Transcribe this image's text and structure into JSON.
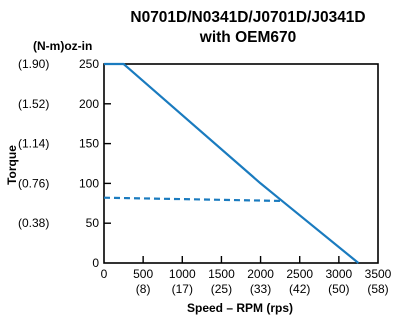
{
  "chart_data": {
    "type": "line",
    "title": "N0701D/N0341D/J0701D/J0341D",
    "subtitle": "with OEM670",
    "xlabel": "Speed – RPM (rps)",
    "ylabel": "Torque",
    "yunit_label": "(N-m)oz-in",
    "xlim": [
      0,
      3500
    ],
    "ylim": [
      0,
      250
    ],
    "grid": false,
    "x_ticks": [
      {
        "value": 0,
        "label": "0",
        "sublabel": ""
      },
      {
        "value": 500,
        "label": "500",
        "sublabel": "(8)"
      },
      {
        "value": 1000,
        "label": "1000",
        "sublabel": "(17)"
      },
      {
        "value": 1500,
        "label": "1500",
        "sublabel": "(25)"
      },
      {
        "value": 2000,
        "label": "2000",
        "sublabel": "(33)"
      },
      {
        "value": 2500,
        "label": "2500",
        "sublabel": "(42)"
      },
      {
        "value": 3000,
        "label": "3000",
        "sublabel": "(50)"
      },
      {
        "value": 3500,
        "label": "3500",
        "sublabel": "(58)"
      }
    ],
    "y_ticks": [
      {
        "value": 0,
        "label": "0",
        "metric": ""
      },
      {
        "value": 50,
        "label": "50",
        "metric": "(0.38)"
      },
      {
        "value": 100,
        "label": "100",
        "metric": "(0.76)"
      },
      {
        "value": 150,
        "label": "150",
        "metric": "(1.14)"
      },
      {
        "value": 200,
        "label": "200",
        "metric": "(1.52)"
      },
      {
        "value": 250,
        "label": "250",
        "metric": "(1.90)"
      }
    ],
    "series": [
      {
        "style": "solid",
        "color": "#1a7bbf",
        "x": [
          0,
          250,
          2000,
          2250,
          3250
        ],
        "y": [
          250,
          250,
          100,
          80,
          0
        ]
      },
      {
        "style": "dashed",
        "color": "#1a7bbf",
        "x": [
          0,
          2250
        ],
        "y": [
          82,
          78
        ]
      }
    ]
  }
}
